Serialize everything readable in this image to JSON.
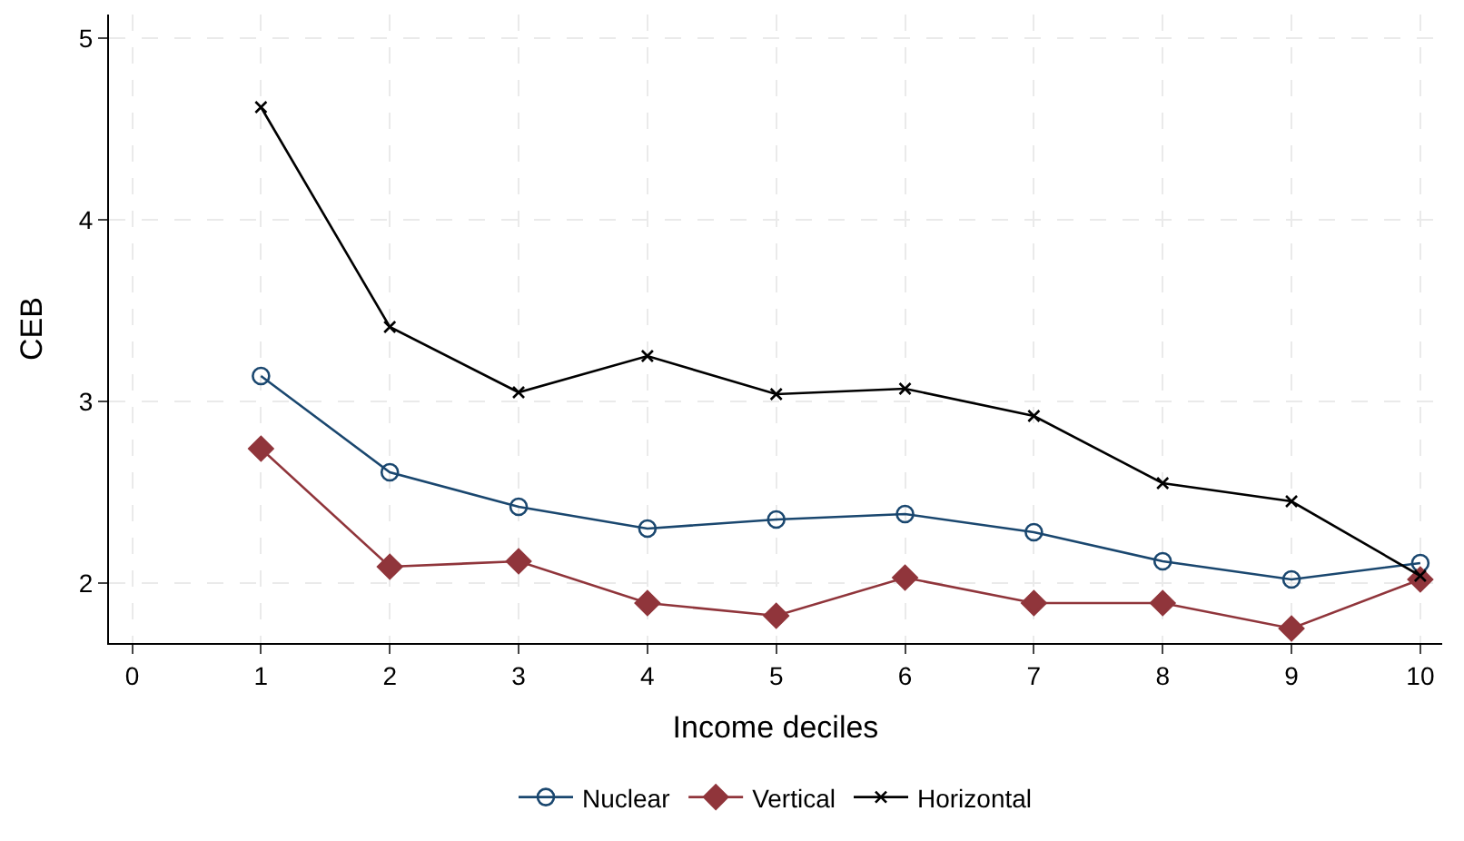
{
  "chart_data": {
    "type": "line",
    "xlabel": "Income deciles",
    "ylabel": "CEB",
    "x": [
      1,
      2,
      3,
      4,
      5,
      6,
      7,
      8,
      9,
      10
    ],
    "series": [
      {
        "name": "Nuclear",
        "color": "#1a476f",
        "marker": "circle",
        "values": [
          3.14,
          2.61,
          2.42,
          2.3,
          2.35,
          2.38,
          2.28,
          2.12,
          2.02,
          2.11
        ]
      },
      {
        "name": "Vertical",
        "color": "#90353b",
        "marker": "diamond",
        "values": [
          2.74,
          2.09,
          2.12,
          1.89,
          1.82,
          2.03,
          1.89,
          1.89,
          1.75,
          2.02
        ]
      },
      {
        "name": "Horizontal",
        "color": "#000000",
        "marker": "cross",
        "values": [
          4.62,
          3.41,
          3.05,
          3.25,
          3.04,
          3.07,
          2.92,
          2.55,
          2.45,
          2.04
        ]
      }
    ],
    "xlim": [
      -0.18,
      10.17
    ],
    "xticks": [
      0,
      1,
      2,
      3,
      4,
      5,
      6,
      7,
      8,
      9,
      10
    ],
    "ylim": [
      1.67,
      5.13
    ],
    "yticks": [
      2,
      3,
      4,
      5
    ],
    "grid": true,
    "legend": "bottom",
    "line_style": "solid"
  }
}
